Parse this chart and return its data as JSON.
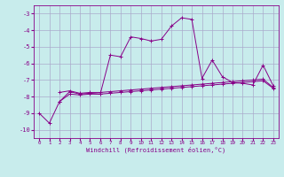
{
  "xlabel": "Windchill (Refroidissement éolien,°C)",
  "background_color": "#c8ecec",
  "line_color": "#880088",
  "grid_color": "#aaaacc",
  "xlim": [
    -0.5,
    23.5
  ],
  "ylim": [
    -10.5,
    -2.5
  ],
  "yticks": [
    -10,
    -9,
    -8,
    -7,
    -6,
    -5,
    -4,
    -3
  ],
  "xticks": [
    0,
    1,
    2,
    3,
    4,
    5,
    6,
    7,
    8,
    9,
    10,
    11,
    12,
    13,
    14,
    15,
    16,
    17,
    18,
    19,
    20,
    21,
    22,
    23
  ],
  "main_line": {
    "x": [
      0,
      1,
      2,
      3,
      4,
      5,
      6,
      7,
      8,
      9,
      10,
      11,
      12,
      13,
      14,
      15,
      16,
      17,
      18,
      19,
      20,
      21,
      22,
      23
    ],
    "y": [
      -9.0,
      -9.6,
      -8.3,
      -7.7,
      -7.85,
      -7.8,
      -7.85,
      -5.5,
      -5.6,
      -4.4,
      -4.5,
      -4.65,
      -4.55,
      -3.75,
      -3.25,
      -3.35,
      -6.9,
      -5.8,
      -6.8,
      -7.15,
      -7.2,
      -7.3,
      -6.1,
      -7.35
    ]
  },
  "line2": {
    "x": [
      2,
      3,
      4,
      5,
      6,
      7,
      8,
      9,
      10,
      11,
      12,
      13,
      14,
      15,
      16,
      17,
      18,
      19,
      20,
      21,
      22,
      23
    ],
    "y": [
      -8.3,
      -7.85,
      -7.9,
      -7.85,
      -7.85,
      -7.8,
      -7.75,
      -7.7,
      -7.65,
      -7.6,
      -7.55,
      -7.5,
      -7.45,
      -7.4,
      -7.35,
      -7.3,
      -7.25,
      -7.2,
      -7.15,
      -7.1,
      -7.05,
      -7.5
    ]
  },
  "line3": {
    "x": [
      2,
      3,
      4,
      5,
      6,
      7,
      8,
      9,
      10,
      11,
      12,
      13,
      14,
      15,
      16,
      17,
      18,
      19,
      20,
      21,
      22,
      23
    ],
    "y": [
      -7.75,
      -7.65,
      -7.8,
      -7.75,
      -7.75,
      -7.7,
      -7.65,
      -7.6,
      -7.55,
      -7.5,
      -7.45,
      -7.4,
      -7.35,
      -7.3,
      -7.25,
      -7.2,
      -7.15,
      -7.1,
      -7.05,
      -7.0,
      -6.95,
      -7.45
    ]
  }
}
